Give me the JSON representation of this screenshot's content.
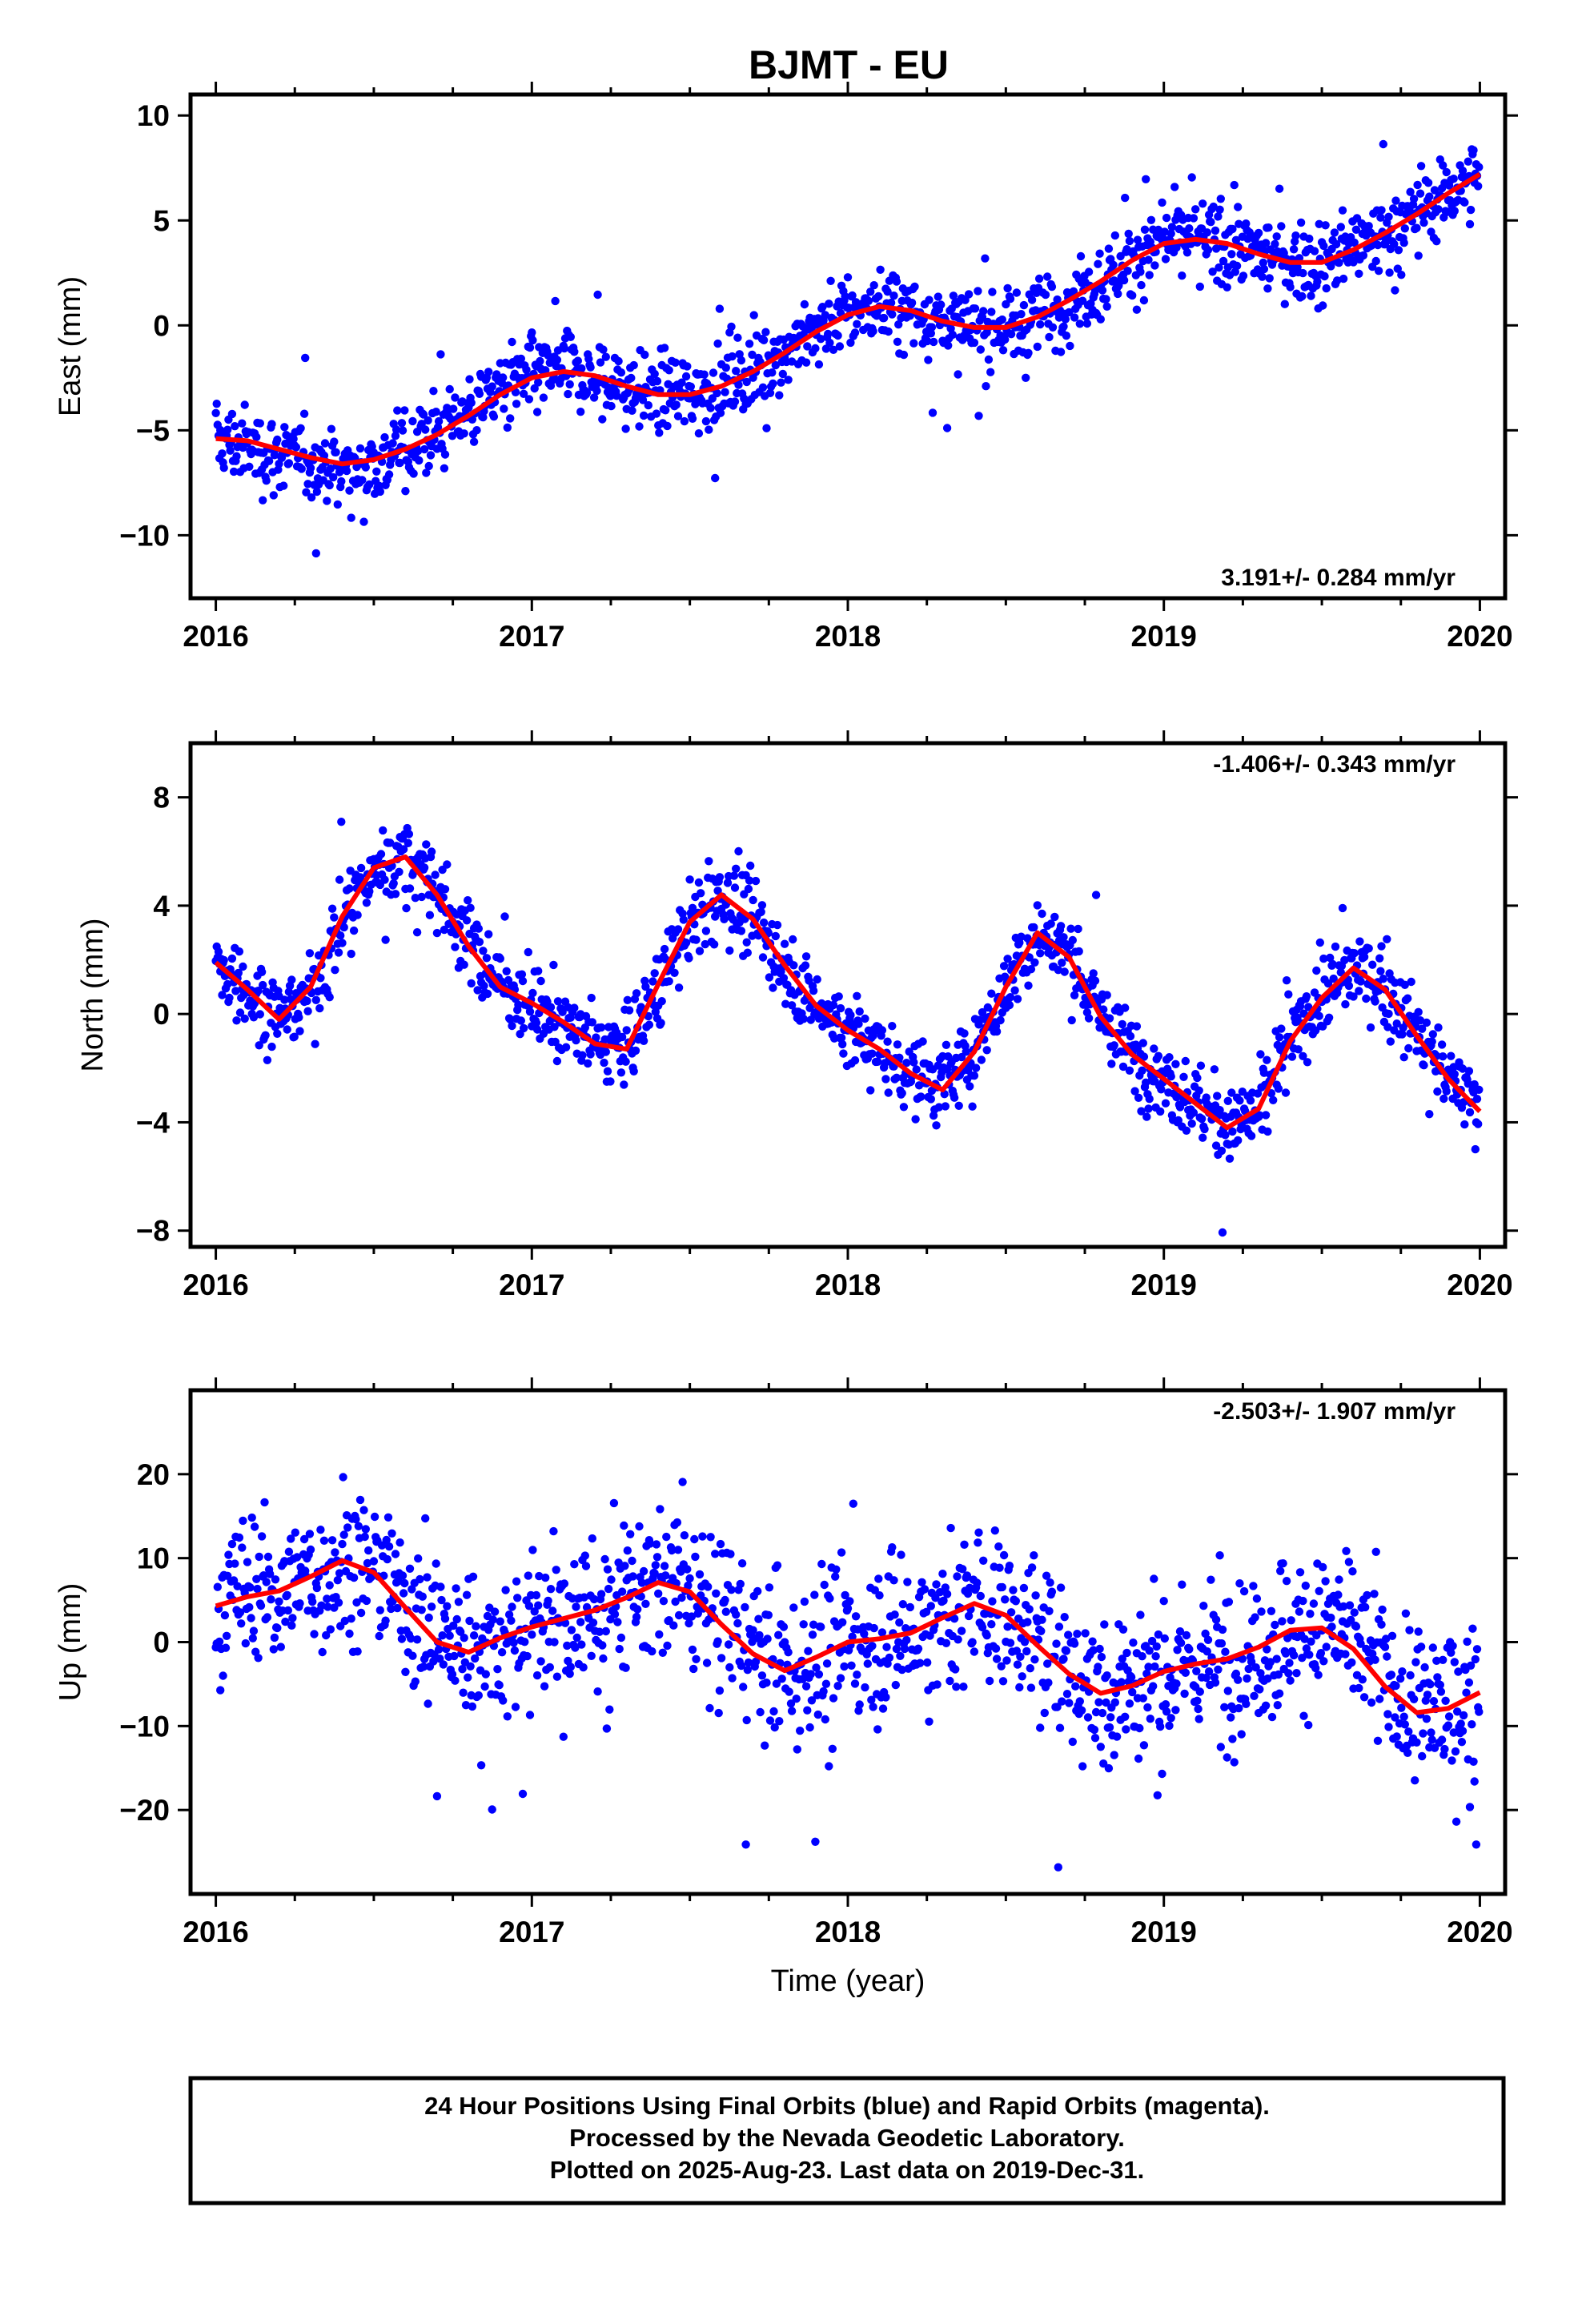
{
  "figure": {
    "title": "BJMT - EU",
    "footer_lines": [
      "24 Hour Positions Using Final Orbits (blue) and Rapid Orbits (magenta).",
      "Processed by the Nevada Geodetic Laboratory.",
      "Plotted on 2025-Aug-23. Last data on 2019-Dec-31."
    ],
    "colors": {
      "points": "#0000ff",
      "fit": "#ff0000",
      "axis": "#000000"
    }
  },
  "chart_data": [
    {
      "type": "scatter",
      "ylabel": "East (mm)",
      "xlabel": "",
      "xlim": [
        2015.92,
        2020.08
      ],
      "ylim": [
        -13,
        11
      ],
      "xticks": [
        2016,
        2017,
        2018,
        2019,
        2020
      ],
      "yticks": [
        -10,
        -5,
        0,
        5,
        10
      ],
      "ytick_labels": [
        "−10",
        "−5",
        "0",
        "5",
        "10"
      ],
      "rate_label": "3.191+/- 0.284 mm/yr",
      "rate_position": "bottom-right",
      "series": [
        {
          "role": "daily positions",
          "marker": "dot",
          "x": [
            2016.0,
            2016.1,
            2016.2,
            2016.3,
            2016.4,
            2016.5,
            2016.6,
            2016.7,
            2016.8,
            2016.9,
            2017.0,
            2017.1,
            2017.2,
            2017.3,
            2017.4,
            2017.5,
            2017.6,
            2017.7,
            2017.8,
            2017.9,
            2018.0,
            2018.1,
            2018.2,
            2018.3,
            2018.4,
            2018.5,
            2018.6,
            2018.7,
            2018.8,
            2018.9,
            2019.0,
            2019.1,
            2019.2,
            2019.3,
            2019.4,
            2019.5,
            2019.6,
            2019.7,
            2019.8,
            2019.9,
            2020.0
          ],
          "y": [
            -5.4,
            -5.8,
            -6.2,
            -6.4,
            -6.9,
            -6.6,
            -5.9,
            -5.0,
            -4.0,
            -3.0,
            -2.5,
            -2.2,
            -2.6,
            -3.0,
            -3.3,
            -3.3,
            -2.8,
            -2.1,
            -1.2,
            -0.2,
            0.6,
            0.9,
            0.6,
            0.1,
            -0.3,
            -0.1,
            0.4,
            1.2,
            2.1,
            3.1,
            3.9,
            4.1,
            3.9,
            3.4,
            3.0,
            3.0,
            3.6,
            4.4,
            5.3,
            6.3,
            7.2
          ]
        },
        {
          "role": "fit",
          "marker": "line",
          "x": [
            2016.0,
            2016.1,
            2016.2,
            2016.3,
            2016.4,
            2016.5,
            2016.6,
            2016.7,
            2016.8,
            2016.9,
            2017.0,
            2017.1,
            2017.2,
            2017.3,
            2017.4,
            2017.5,
            2017.6,
            2017.7,
            2017.8,
            2017.9,
            2018.0,
            2018.1,
            2018.2,
            2018.3,
            2018.4,
            2018.5,
            2018.6,
            2018.7,
            2018.8,
            2018.9,
            2019.0,
            2019.1,
            2019.2,
            2019.3,
            2019.4,
            2019.5,
            2019.6,
            2019.7,
            2019.8,
            2019.9,
            2020.0
          ],
          "y": [
            -5.4,
            -5.5,
            -5.9,
            -6.3,
            -6.6,
            -6.4,
            -5.9,
            -5.2,
            -4.3,
            -3.3,
            -2.5,
            -2.2,
            -2.4,
            -2.9,
            -3.3,
            -3.3,
            -2.9,
            -2.2,
            -1.3,
            -0.3,
            0.5,
            0.9,
            0.7,
            0.2,
            -0.1,
            -0.1,
            0.4,
            1.2,
            2.1,
            3.1,
            3.9,
            4.1,
            3.9,
            3.4,
            3.0,
            3.0,
            3.6,
            4.4,
            5.3,
            6.3,
            7.2
          ]
        }
      ]
    },
    {
      "type": "scatter",
      "ylabel": "North (mm)",
      "xlabel": "",
      "xlim": [
        2015.92,
        2020.08
      ],
      "ylim": [
        -8.6,
        10
      ],
      "xticks": [
        2016,
        2017,
        2018,
        2019,
        2020
      ],
      "yticks": [
        -8,
        -4,
        0,
        4,
        8
      ],
      "ytick_labels": [
        "−8",
        "−4",
        "0",
        "4",
        "8"
      ],
      "rate_label": "-1.406+/- 0.343 mm/yr",
      "rate_position": "top-right",
      "series": [
        {
          "role": "daily positions",
          "marker": "dot",
          "x": [
            2016.0,
            2016.1,
            2016.2,
            2016.3,
            2016.4,
            2016.5,
            2016.6,
            2016.7,
            2016.8,
            2016.9,
            2017.0,
            2017.1,
            2017.2,
            2017.3,
            2017.4,
            2017.5,
            2017.6,
            2017.7,
            2017.8,
            2017.9,
            2018.0,
            2018.1,
            2018.2,
            2018.3,
            2018.4,
            2018.5,
            2018.6,
            2018.7,
            2018.8,
            2018.9,
            2019.0,
            2019.1,
            2019.2,
            2019.3,
            2019.4,
            2019.5,
            2019.6,
            2019.7,
            2019.8,
            2019.9,
            2020.0
          ],
          "y": [
            1.8,
            0.9,
            -0.2,
            0.8,
            3.4,
            5.3,
            5.8,
            4.6,
            2.6,
            1.1,
            0.4,
            -0.3,
            -1.1,
            -1.2,
            1.0,
            3.3,
            4.4,
            3.6,
            1.8,
            0.3,
            -0.6,
            -1.3,
            -2.2,
            -2.7,
            -1.4,
            1.0,
            3.0,
            2.2,
            0.0,
            -1.5,
            -2.4,
            -3.3,
            -4.2,
            -3.6,
            -1.0,
            0.6,
            1.7,
            1.0,
            -0.7,
            -2.4,
            -3.5
          ]
        },
        {
          "role": "fit",
          "marker": "line",
          "x": [
            2016.0,
            2016.1,
            2016.2,
            2016.3,
            2016.4,
            2016.5,
            2016.6,
            2016.7,
            2016.8,
            2016.9,
            2017.0,
            2017.1,
            2017.2,
            2017.3,
            2017.4,
            2017.5,
            2017.6,
            2017.7,
            2017.8,
            2017.9,
            2018.0,
            2018.1,
            2018.2,
            2018.3,
            2018.4,
            2018.5,
            2018.6,
            2018.7,
            2018.8,
            2018.9,
            2019.0,
            2019.1,
            2019.2,
            2019.3,
            2019.4,
            2019.5,
            2019.6,
            2019.7,
            2019.8,
            2019.9,
            2020.0
          ],
          "y": [
            1.9,
            0.9,
            -0.2,
            1.0,
            3.6,
            5.4,
            5.8,
            4.4,
            2.5,
            1.0,
            0.4,
            -0.3,
            -1.1,
            -1.3,
            1.1,
            3.4,
            4.4,
            3.5,
            1.8,
            0.3,
            -0.6,
            -1.3,
            -2.2,
            -2.8,
            -1.4,
            1.0,
            3.0,
            2.1,
            -0.1,
            -1.5,
            -2.4,
            -3.3,
            -4.2,
            -3.5,
            -1.0,
            0.6,
            1.7,
            0.9,
            -0.8,
            -2.4,
            -3.6
          ]
        }
      ]
    },
    {
      "type": "scatter",
      "ylabel": "Up (mm)",
      "xlabel": "Time (year)",
      "xlim": [
        2015.92,
        2020.08
      ],
      "ylim": [
        -30,
        30
      ],
      "xticks": [
        2016,
        2017,
        2018,
        2019,
        2020
      ],
      "yticks": [
        -20,
        -10,
        0,
        10,
        20
      ],
      "ytick_labels": [
        "−20",
        "−10",
        "0",
        "10",
        "20"
      ],
      "rate_label": "-2.503+/- 1.907 mm/yr",
      "rate_position": "top-right",
      "series": [
        {
          "role": "daily positions",
          "marker": "dot",
          "x": [
            2016.0,
            2016.1,
            2016.2,
            2016.3,
            2016.4,
            2016.5,
            2016.6,
            2016.7,
            2016.8,
            2016.9,
            2017.0,
            2017.1,
            2017.2,
            2017.3,
            2017.4,
            2017.5,
            2017.6,
            2017.7,
            2017.8,
            2017.9,
            2018.0,
            2018.1,
            2018.2,
            2018.3,
            2018.4,
            2018.5,
            2018.6,
            2018.7,
            2018.8,
            2018.9,
            2019.0,
            2019.1,
            2019.2,
            2019.3,
            2019.4,
            2019.5,
            2019.6,
            2019.7,
            2019.8,
            2019.9,
            2020.0
          ],
          "y": [
            4.5,
            5.5,
            6.0,
            7.5,
            9.5,
            9.0,
            5.0,
            1.0,
            -1.0,
            0.0,
            1.5,
            2.5,
            3.5,
            5.0,
            7.0,
            6.5,
            3.0,
            -0.5,
            -3.5,
            -2.0,
            0.0,
            0.5,
            1.0,
            2.5,
            4.5,
            4.0,
            0.5,
            -3.0,
            -6.0,
            -5.5,
            -3.5,
            -2.5,
            -2.0,
            -1.0,
            1.0,
            2.0,
            0.5,
            -4.0,
            -8.0,
            -8.0,
            -6.0
          ]
        },
        {
          "role": "fit",
          "marker": "line",
          "x": [
            2016.0,
            2016.1,
            2016.2,
            2016.3,
            2016.4,
            2016.5,
            2016.6,
            2016.7,
            2016.8,
            2016.9,
            2017.0,
            2017.1,
            2017.2,
            2017.3,
            2017.4,
            2017.5,
            2017.6,
            2017.7,
            2017.8,
            2017.9,
            2018.0,
            2018.1,
            2018.2,
            2018.3,
            2018.4,
            2018.5,
            2018.6,
            2018.7,
            2018.8,
            2018.9,
            2019.0,
            2019.1,
            2019.2,
            2019.3,
            2019.4,
            2019.5,
            2019.6,
            2019.7,
            2019.8,
            2019.9,
            2020.0
          ],
          "y": [
            4.3,
            5.4,
            6.1,
            7.8,
            9.7,
            8.3,
            4.1,
            0.0,
            -1.2,
            0.5,
            1.8,
            2.8,
            3.8,
            5.3,
            7.1,
            6.0,
            2.1,
            -1.4,
            -3.4,
            -1.8,
            0.0,
            0.4,
            1.1,
            2.9,
            4.6,
            3.2,
            -0.4,
            -3.8,
            -6.1,
            -5.2,
            -3.5,
            -2.6,
            -2.0,
            -0.6,
            1.4,
            1.7,
            -0.8,
            -5.3,
            -8.4,
            -7.9,
            -6.0
          ]
        }
      ]
    }
  ]
}
